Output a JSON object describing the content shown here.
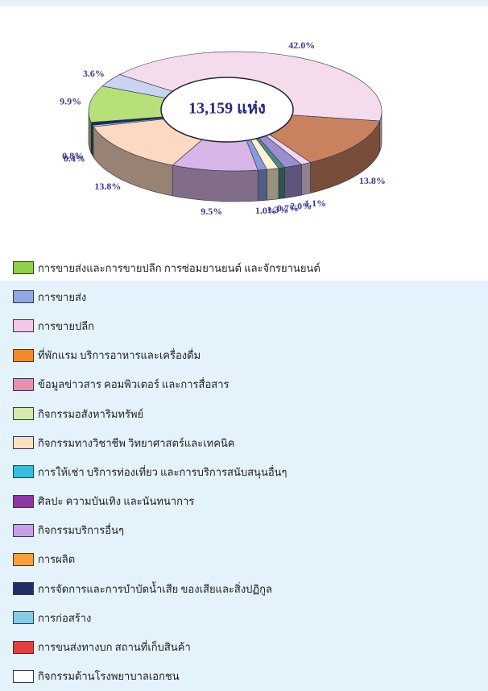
{
  "chart_data": {
    "type": "donut3d",
    "center_label": "13,159 แห่ง",
    "values": [
      42.0,
      13.8,
      1.1,
      2.0,
      0.7,
      1.3,
      1.0,
      9.5,
      13.8,
      0.4,
      0.8,
      9.9,
      3.6
    ],
    "value_labels": [
      "42.0%",
      "13.8%",
      "1.1%",
      "2.0%",
      "0.7%",
      "1.3%",
      "1.0%",
      "9.5%",
      "13.8%",
      "0.4%",
      "0.8%",
      "9.9%",
      "3.6%"
    ],
    "colors": [
      "#f4dcec",
      "#c9825f",
      "#f0d6f0",
      "#9a8fd0",
      "#4c8a8a",
      "#fdf3d0",
      "#8899dd",
      "#d7b5e6",
      "#fcd9c0",
      "#a8d8ef",
      "#1c2a66",
      "#b8e07a",
      "#c8d4f0"
    ],
    "legend": [
      {
        "name": "การขายส่งและการขายปลีก การซ่อมยานยนต์ และจักรยานยนต์",
        "color": "#8fd14f"
      },
      {
        "name": "การขายส่ง",
        "color": "#8fa8e0"
      },
      {
        "name": "การขายปลีก",
        "color": "#f5c6e6"
      },
      {
        "name": "ที่พักแรม บริการอาหารและเครื่องดื่ม",
        "color": "#f08a2c"
      },
      {
        "name": "ข้อมูลข่าวสาร คอมพิวเตอร์ และการสื่อสาร",
        "color": "#e88fb0"
      },
      {
        "name": "กิจกรรมอสังหาริมทรัพย์",
        "color": "#d6e9b3"
      },
      {
        "name": "กิจกรรมทางวิชาชีพ วิทยาศาสตร์และเทคนิค",
        "color": "#fde0c0"
      },
      {
        "name": "การให้เช่า บริการท่องเที่ยว และการบริการสนับสนุนอื่นๆ",
        "color": "#38bde0"
      },
      {
        "name": "ศิลปะ ความบันเทิง และนันทนาการ",
        "color": "#8a3aa0"
      },
      {
        "name": "กิจกรรมบริการอื่นๆ",
        "color": "#c89ee6"
      },
      {
        "name": "การผลิต",
        "color": "#f6a040"
      },
      {
        "name": "การจัดการและการบำบัดน้ำเสีย ของเสียและสิ่งปฏิกูล",
        "color": "#1f2f66"
      },
      {
        "name": "การก่อสร้าง",
        "color": "#8ccbe8"
      },
      {
        "name": "การขนส่งทางบก สถานที่เก็บสินค้า",
        "color": "#e04040"
      },
      {
        "name": "กิจกรรมด้านโรงพยาบาลเอกชน",
        "color": "#ffffff"
      }
    ]
  }
}
